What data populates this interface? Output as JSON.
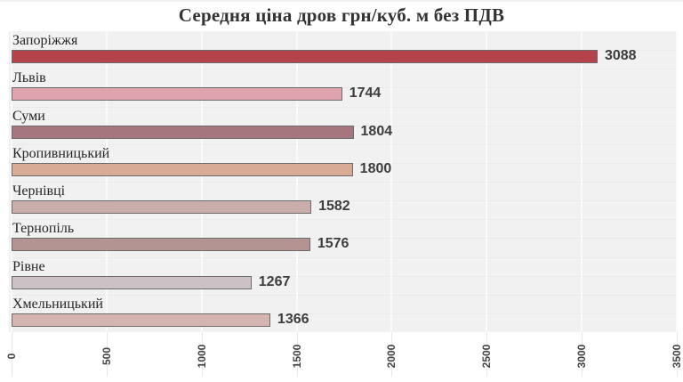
{
  "title": "Середня ціна дров грн/куб. м без ПДВ",
  "chart_data": {
    "type": "bar",
    "orientation": "horizontal",
    "title": "Середня ціна дров грн/куб. м без ПДВ",
    "categories": [
      "Запоріжжя",
      "Львів",
      "Суми",
      "Кропивницький",
      "Чернівці",
      "Тернопіль",
      "Рівне",
      "Хмельницький"
    ],
    "values": [
      3088,
      1744,
      1804,
      1800,
      1582,
      1576,
      1267,
      1366
    ],
    "value_labels": [
      "3088",
      "1744",
      "1804",
      "1800",
      "1582",
      "1576",
      "1267",
      "1366"
    ],
    "bar_colors": [
      "#b5434c",
      "#dfa3ae",
      "#a5767d",
      "#d7ab96",
      "#c9adaa",
      "#b39492",
      "#ccc1c4",
      "#d5b4af"
    ],
    "bar_border_color": "#6b6b6b",
    "x_ticks": [
      0,
      500,
      1000,
      1500,
      2000,
      2500,
      3000,
      3500
    ],
    "x_tick_labels": [
      "0",
      "500",
      "1000",
      "1500",
      "2000",
      "2500",
      "3000",
      "3500"
    ],
    "xlim": [
      0,
      3500
    ],
    "grid": true,
    "legend": "none",
    "plot_background": "#f2f1f1",
    "vertical_gridline_color": "#fafafa",
    "horizontal_gridline_color": "#eae8e8",
    "title_color": "#333333",
    "category_label_color": "#262626",
    "value_label_color": "#3d3d3d",
    "tick_label_color": "#444444"
  }
}
